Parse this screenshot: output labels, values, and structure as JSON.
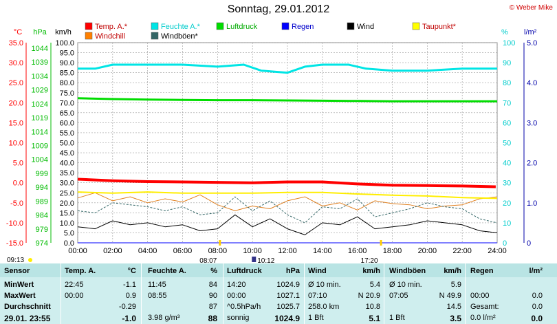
{
  "title": "Sonntag, 29.01.2012",
  "copyright": "© Weber Mike",
  "axes": {
    "temp_unit": "°C",
    "hpa_unit": "hPa",
    "kmh_unit": "km/h",
    "pct_unit": "%",
    "rain_unit": "l/m²",
    "temp_ticks": [
      "35.0",
      "30.0",
      "25.0",
      "20.0",
      "15.0",
      "10.0",
      "5.0",
      "0.0",
      "-5.0",
      "-10.0",
      "-15.0"
    ],
    "hpa_ticks": [
      "1044",
      "1039",
      "1034",
      "1029",
      "1024",
      "1019",
      "1014",
      "1009",
      "1004",
      "999",
      "994",
      "989",
      "984",
      "979",
      "974"
    ],
    "kmh_ticks": [
      "100.0",
      "95.0",
      "90.0",
      "85.0",
      "80.0",
      "75.0",
      "70.0",
      "65.0",
      "60.0",
      "55.0",
      "50.0",
      "45.0",
      "40.0",
      "35.0",
      "30.0",
      "25.0",
      "20.0",
      "15.0",
      "10.0",
      "5.0",
      "0.0"
    ],
    "pct_ticks": [
      "100",
      "90",
      "80",
      "70",
      "60",
      "50",
      "40",
      "30",
      "20",
      "10",
      "0"
    ],
    "rain_ticks": [
      "5.0",
      "4.0",
      "3.0",
      "2.0",
      "1.0",
      "0"
    ],
    "time_ticks": [
      "00:00",
      "02:00",
      "04:00",
      "06:00",
      "08:00",
      "10:00",
      "12:00",
      "14:00",
      "16:00",
      "18:00",
      "20:00",
      "22:00",
      "24:00"
    ]
  },
  "legend": [
    {
      "label": "Temp. A.*",
      "color": "#ff0000"
    },
    {
      "label": "Feuchte A.*",
      "color": "#00e5e5"
    },
    {
      "label": "Luftdruck",
      "color": "#00dd00"
    },
    {
      "label": "Regen",
      "color": "#0000ff"
    },
    {
      "label": "Wind",
      "color": "#000000"
    },
    {
      "label": "Taupunkt*",
      "color": "#ffff00"
    },
    {
      "label": "Windchill",
      "color": "#ff8000"
    },
    {
      "label": "Windböen*",
      "color": "#336666"
    }
  ],
  "sun": {
    "sunrise": "08:07",
    "sunset": "17:20",
    "moon": "10:12",
    "daylight_start": "09:13"
  },
  "chart_data": {
    "type": "line",
    "x_range": [
      "00:00",
      "24:00"
    ],
    "grid": true,
    "series": [
      {
        "name": "Temp. A.*",
        "axis": "°C",
        "x": [
          "00:00",
          "02:00",
          "04:00",
          "06:00",
          "08:00",
          "10:00",
          "12:00",
          "14:00",
          "16:00",
          "18:00",
          "20:00",
          "22:00",
          "23:55"
        ],
        "values": [
          0.9,
          0.5,
          0.3,
          0.2,
          0.1,
          0.0,
          0.2,
          0.2,
          -0.3,
          -0.6,
          -0.7,
          -0.8,
          -1.0
        ]
      },
      {
        "name": "Feuchte A.*",
        "axis": "%",
        "x": [
          "00:00",
          "01:00",
          "02:00",
          "04:00",
          "06:00",
          "08:00",
          "09:30",
          "10:30",
          "12:00",
          "13:00",
          "14:00",
          "15:30",
          "16:30",
          "18:00",
          "20:00",
          "22:00",
          "24:00"
        ],
        "values": [
          87,
          87,
          89,
          89,
          89,
          88,
          89,
          86,
          85,
          88,
          89,
          89,
          87,
          86,
          86,
          87,
          87
        ]
      },
      {
        "name": "Luftdruck",
        "axis": "hPa",
        "x": [
          "00:00",
          "02:00",
          "04:00",
          "06:00",
          "08:00",
          "10:00",
          "12:00",
          "14:00",
          "16:00",
          "18:00",
          "20:00",
          "22:00",
          "24:00"
        ],
        "values": [
          1026.0,
          1025.7,
          1025.5,
          1025.4,
          1025.3,
          1025.3,
          1025.2,
          1025.1,
          1025.0,
          1024.9,
          1024.9,
          1024.9,
          1024.9
        ]
      },
      {
        "name": "Taupunkt*",
        "axis": "°C",
        "x": [
          "00:00",
          "02:00",
          "04:00",
          "06:00",
          "08:00",
          "10:00",
          "12:00",
          "14:00",
          "16:00",
          "18:00",
          "20:00",
          "22:00",
          "24:00"
        ],
        "values": [
          -2.3,
          -2.6,
          -2.3,
          -2.6,
          -2.6,
          -2.6,
          -2.4,
          -2.4,
          -2.8,
          -3.1,
          -3.3,
          -3.7,
          -3.9
        ]
      },
      {
        "name": "Wind",
        "axis": "km/h",
        "x": [
          "00:00",
          "01:00",
          "02:00",
          "03:00",
          "04:00",
          "05:00",
          "06:00",
          "07:00",
          "08:00",
          "09:00",
          "10:00",
          "11:00",
          "12:00",
          "13:00",
          "14:00",
          "15:00",
          "16:00",
          "17:00",
          "18:00",
          "19:00",
          "20:00",
          "21:00",
          "22:00",
          "23:00",
          "24:00"
        ],
        "values": [
          8,
          7,
          11,
          9,
          10,
          8,
          9,
          6,
          7,
          14,
          8,
          12,
          7,
          4,
          10,
          9,
          13,
          7,
          8,
          9,
          11,
          10,
          9,
          6,
          5
        ]
      },
      {
        "name": "Windböen*",
        "axis": "km/h",
        "x": [
          "00:00",
          "01:00",
          "02:00",
          "03:00",
          "04:00",
          "05:00",
          "06:00",
          "07:00",
          "08:00",
          "09:00",
          "10:00",
          "11:00",
          "12:00",
          "13:00",
          "14:00",
          "15:00",
          "16:00",
          "17:00",
          "18:00",
          "19:00",
          "20:00",
          "21:00",
          "22:00",
          "23:00",
          "24:00"
        ],
        "values": [
          16,
          15,
          20,
          19,
          18,
          16,
          18,
          14,
          15,
          23,
          16,
          21,
          14,
          10,
          18,
          17,
          22,
          13,
          15,
          17,
          20,
          18,
          17,
          12,
          10
        ]
      },
      {
        "name": "Windchill",
        "axis": "°C",
        "x": [
          "00:00",
          "01:00",
          "02:00",
          "03:00",
          "04:00",
          "05:00",
          "06:00",
          "07:00",
          "08:00",
          "09:00",
          "10:00",
          "11:00",
          "12:00",
          "13:00",
          "14:00",
          "15:00",
          "16:00",
          "17:00",
          "18:00",
          "19:00",
          "20:00",
          "21:00",
          "22:00",
          "23:00",
          "24:00"
        ],
        "values": [
          -3.8,
          -2.5,
          -4.5,
          -3.5,
          -5.0,
          -4.0,
          -4.8,
          -3.0,
          -5.5,
          -7.0,
          -5.8,
          -6.5,
          -4.5,
          -3.5,
          -5.8,
          -5.0,
          -6.8,
          -4.5,
          -5.2,
          -5.5,
          -6.5,
          -5.8,
          -5.5,
          -4.0,
          -3.5
        ]
      },
      {
        "name": "Regen",
        "axis": "l/m²",
        "x": [
          "00:00",
          "24:00"
        ],
        "values": [
          0,
          0
        ]
      }
    ]
  },
  "table": {
    "headers": [
      "Sensor",
      "Temp. A.",
      "°C",
      "Feuchte A.",
      "%",
      "Luftdruck",
      "hPa",
      "Wind",
      "km/h",
      "Windböen",
      "km/h",
      "Regen",
      "l/m²"
    ],
    "rows": [
      {
        "label": "MinWert",
        "c": [
          "22:45",
          "-1.1",
          "11:45",
          "84",
          "14:20",
          "1024.9",
          "Ø 10 min.",
          "5.4",
          "Ø 10 min.",
          "5.9",
          "",
          ""
        ]
      },
      {
        "label": "MaxWert",
        "c": [
          "00:00",
          "0.9",
          "08:55",
          "90",
          "00:00",
          "1027.1",
          "07:10",
          "N 20.9",
          "07:05",
          "N 49.9",
          "00:00",
          "0.0"
        ]
      },
      {
        "label": "Durchschnitt",
        "c": [
          "",
          "-0.29",
          "",
          "87",
          "^0.5hPa/h",
          "1025.7",
          "258.0 km",
          "10.8",
          "",
          "14.5",
          "Gesamt:",
          "0.0"
        ]
      },
      {
        "label": "29.01. 23:55",
        "c": [
          "",
          "-1.0",
          "3.98 g/m³",
          "88",
          "sonnig",
          "1024.9",
          "1 Bft",
          "5.1",
          "1 Bft",
          "3.5",
          "0.0 l/m²",
          "0.0"
        ]
      }
    ]
  },
  "colors": {
    "temp_axis": "#ff0000",
    "hpa_axis": "#00bb00",
    "pct_axis": "#00cccc",
    "rain_axis": "#0000aa",
    "table_bg": "#cfeeee",
    "header_bg": "#b9e4e4"
  }
}
